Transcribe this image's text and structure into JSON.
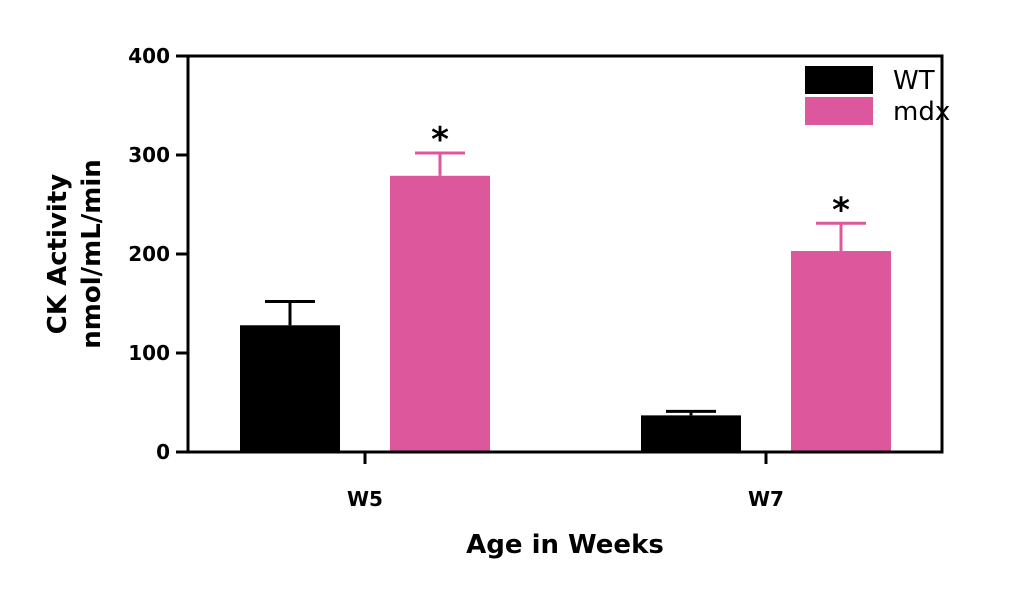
{
  "chart_data": {
    "type": "bar",
    "title": "",
    "xlabel": "Age in  Weeks",
    "ylabel": [
      "CK Activity",
      "nmol/mL/min"
    ],
    "ylim": [
      0,
      400
    ],
    "yticks": [
      "0",
      "100",
      "200",
      "300",
      "400"
    ],
    "categories": [
      "W5",
      "W7"
    ],
    "series": [
      {
        "name": "WT",
        "color": "#000000",
        "values": [
          128,
          37
        ],
        "errors": [
          24,
          4
        ],
        "significance": [
          "",
          ""
        ]
      },
      {
        "name": "mdx",
        "color": "#dc579c",
        "values": [
          279,
          203
        ],
        "errors": [
          23,
          28
        ],
        "significance": [
          "*",
          "*"
        ]
      }
    ],
    "legend": "top-right",
    "grid": false
  }
}
